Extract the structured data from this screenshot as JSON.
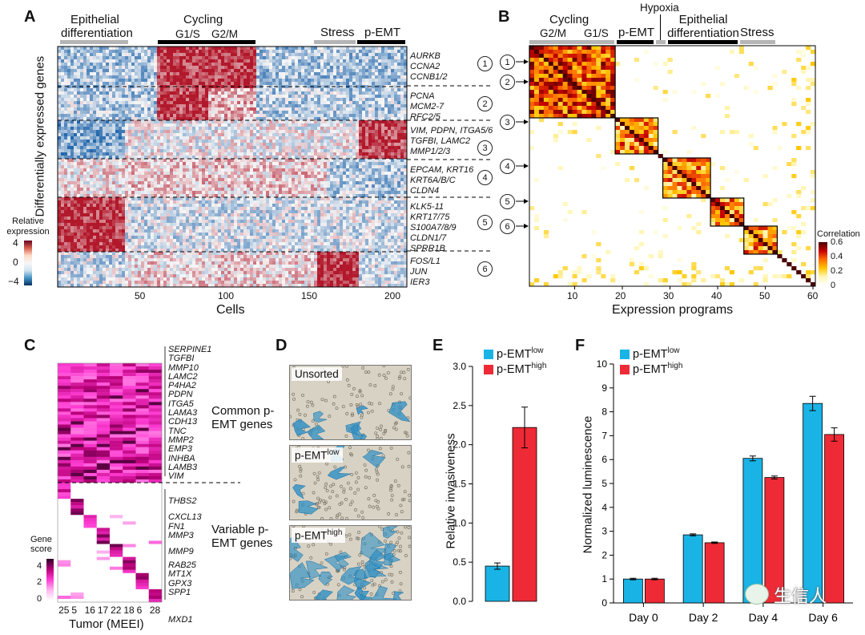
{
  "panel_labels": {
    "a": "A",
    "b": "B",
    "c": "C",
    "d": "D",
    "e": "E",
    "f": "F"
  },
  "panel_a": {
    "top_labels": [
      "Epithelial differentiation",
      "Cycling",
      "G1/S",
      "G2/M",
      "Stress",
      "p-EMT"
    ],
    "y_title": "Differentially expressed genes",
    "x_title": "Cells",
    "x_ticks": [
      "50",
      "100",
      "150",
      "200"
    ],
    "legend_title": "Relative expression",
    "legend_ticks": [
      "4",
      "0",
      "−4"
    ],
    "gene_groups": [
      {
        "number": "1",
        "genes": [
          "AURKB",
          "CCNA2",
          "CCNB1/2"
        ]
      },
      {
        "number": "2",
        "genes": [
          "PCNA",
          "MCM2-7",
          "RFC2/5"
        ]
      },
      {
        "number": "3",
        "genes": [
          "VIM, PDPN, ITGA5/6",
          "TGFBI, LAMC2",
          "MMP1/2/3"
        ]
      },
      {
        "number": "4",
        "genes": [
          "EPCAM, KRT16",
          "KRT6A/B/C",
          "CLDN4"
        ]
      },
      {
        "number": "5",
        "genes": [
          "KLK5-11",
          "KRT17/75",
          "S100A7/8/9",
          "CLDN1/7",
          "SPRR1B"
        ]
      },
      {
        "number": "6",
        "genes": [
          "FOS/L1",
          "JUN",
          "IER3"
        ]
      }
    ],
    "colors": {
      "high": "#b2182b",
      "mid": "#f7f7f7",
      "low": "#2166ac"
    }
  },
  "panel_b": {
    "top_labels": [
      "Cycling",
      "G2/M",
      "G1/S",
      "p-EMT",
      "Hypoxia",
      "Epithelial differentiation",
      "Stress"
    ],
    "x_title": "Expression programs",
    "x_ticks": [
      "10",
      "20",
      "30",
      "40",
      "50",
      "60"
    ],
    "circles": [
      "1",
      "2",
      "3",
      "4",
      "5",
      "6"
    ],
    "legend_title": "Correlation",
    "legend_ticks": [
      "0.6",
      "0.4",
      "0.2",
      "0"
    ]
  },
  "panel_c": {
    "x_title": "Tumor (MEEI)",
    "x_ticks": [
      "25",
      "5",
      "16",
      "17",
      "22",
      "18",
      "6",
      "28"
    ],
    "common_genes": [
      "SERPINE1",
      "TGFBI",
      "MMP10",
      "LAMC2",
      "P4HA2",
      "PDPN",
      "ITGA5",
      "LAMA3",
      "CDH13",
      "TNC",
      "MMP2",
      "EMP3",
      "INHBA",
      "LAMB3",
      "VIM"
    ],
    "variable_genes": [
      "THBS2",
      "CXCL13",
      "FN1",
      "MMP3",
      "MMP9",
      "RAB25",
      "MT1X",
      "GPX3",
      "SPP1",
      "MXD1"
    ],
    "common_label": "Common p-EMT genes",
    "variable_label": "Variable p-EMT genes",
    "legend_title": "Gene score",
    "legend_ticks": [
      "4",
      "2",
      "0"
    ]
  },
  "panel_d": {
    "photos": [
      {
        "label": "Unsorted",
        "sup": ""
      },
      {
        "label": "p-EMT",
        "sup": "low"
      },
      {
        "label": "p-EMT",
        "sup": "high"
      }
    ]
  },
  "panel_e": {
    "legend": [
      {
        "label": "p-EMT",
        "sup": "low"
      },
      {
        "label": "p-EMT",
        "sup": "high"
      }
    ],
    "chart_data": {
      "type": "bar",
      "categories": [
        "p-EMT low",
        "p-EMT high"
      ],
      "values": [
        0.45,
        2.22
      ],
      "errors": [
        0.04,
        0.26
      ],
      "colors": [
        "#19b3e6",
        "#ee2a36"
      ],
      "ylabel": "Relative invasiveness",
      "ylim": [
        0,
        3.0
      ],
      "yticks": [
        0,
        0.5,
        1.0,
        1.5,
        2.0,
        2.5,
        3.0
      ],
      "ytick_labels": [
        "0.0",
        "0.5",
        "1.0",
        "1.5",
        "2.0",
        "2.5",
        "3.0"
      ]
    }
  },
  "panel_f": {
    "legend": [
      {
        "label": "p-EMT",
        "sup": "low"
      },
      {
        "label": "p-EMT",
        "sup": "high"
      }
    ],
    "watermark": "生信人",
    "chart_data": {
      "type": "bar",
      "categories": [
        "Day 0",
        "Day 2",
        "Day 4",
        "Day 6"
      ],
      "series": [
        {
          "name": "p-EMT low",
          "values": [
            1.0,
            2.85,
            6.05,
            8.35
          ],
          "errors": [
            0.03,
            0.04,
            0.1,
            0.3
          ],
          "color": "#19b3e6"
        },
        {
          "name": "p-EMT high",
          "values": [
            1.0,
            2.52,
            5.25,
            7.05
          ],
          "errors": [
            0.03,
            0.03,
            0.06,
            0.28
          ],
          "color": "#ee2a36"
        }
      ],
      "ylabel": "Normalized luminescence",
      "ylim": [
        0,
        10
      ],
      "yticks": [
        0,
        1,
        2,
        3,
        4,
        5,
        6,
        7,
        8,
        9,
        10
      ]
    }
  }
}
